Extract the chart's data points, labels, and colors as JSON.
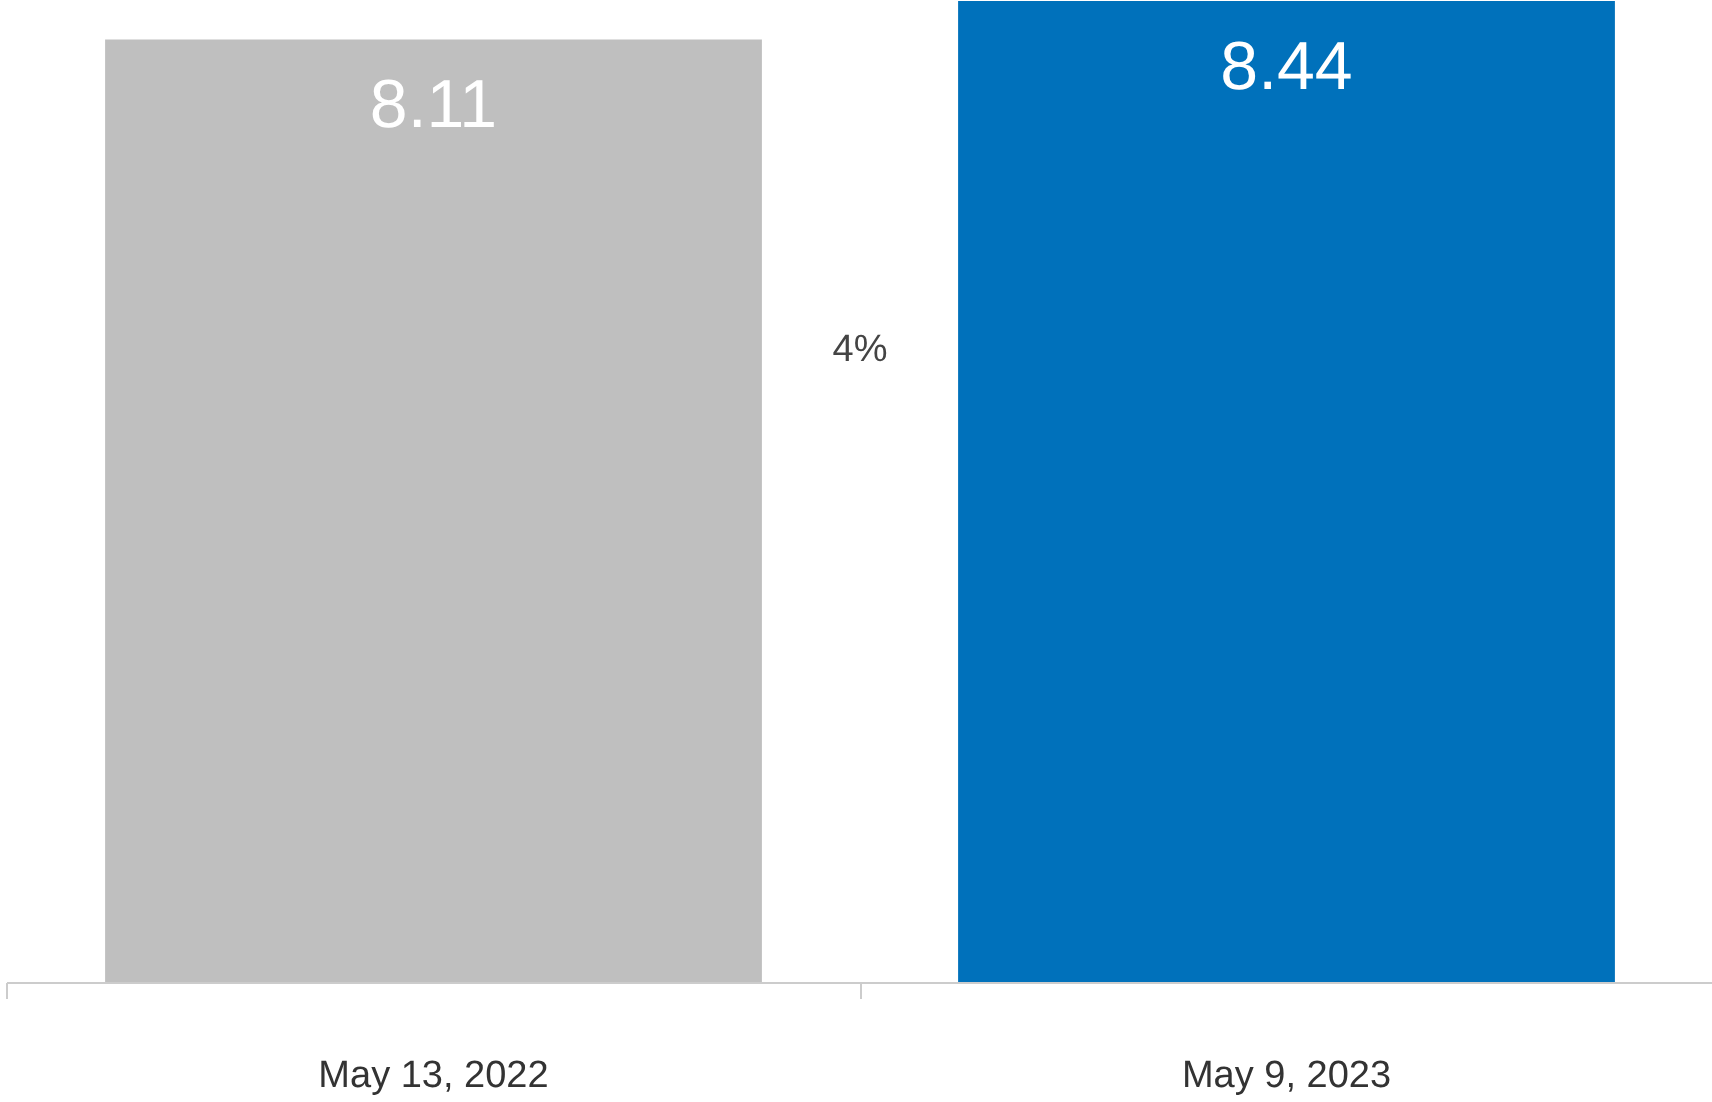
{
  "chart_data": {
    "type": "bar",
    "categories": [
      "May 13, 2022",
      "May 9, 2023"
    ],
    "values": [
      8.11,
      8.44
    ],
    "colors": [
      "#bfbfbf",
      "#0071bb"
    ],
    "ylim": [
      0,
      8.44
    ],
    "tick_labels": "x",
    "data_labels": true,
    "grid": false,
    "annotations": [
      "4%"
    ]
  }
}
